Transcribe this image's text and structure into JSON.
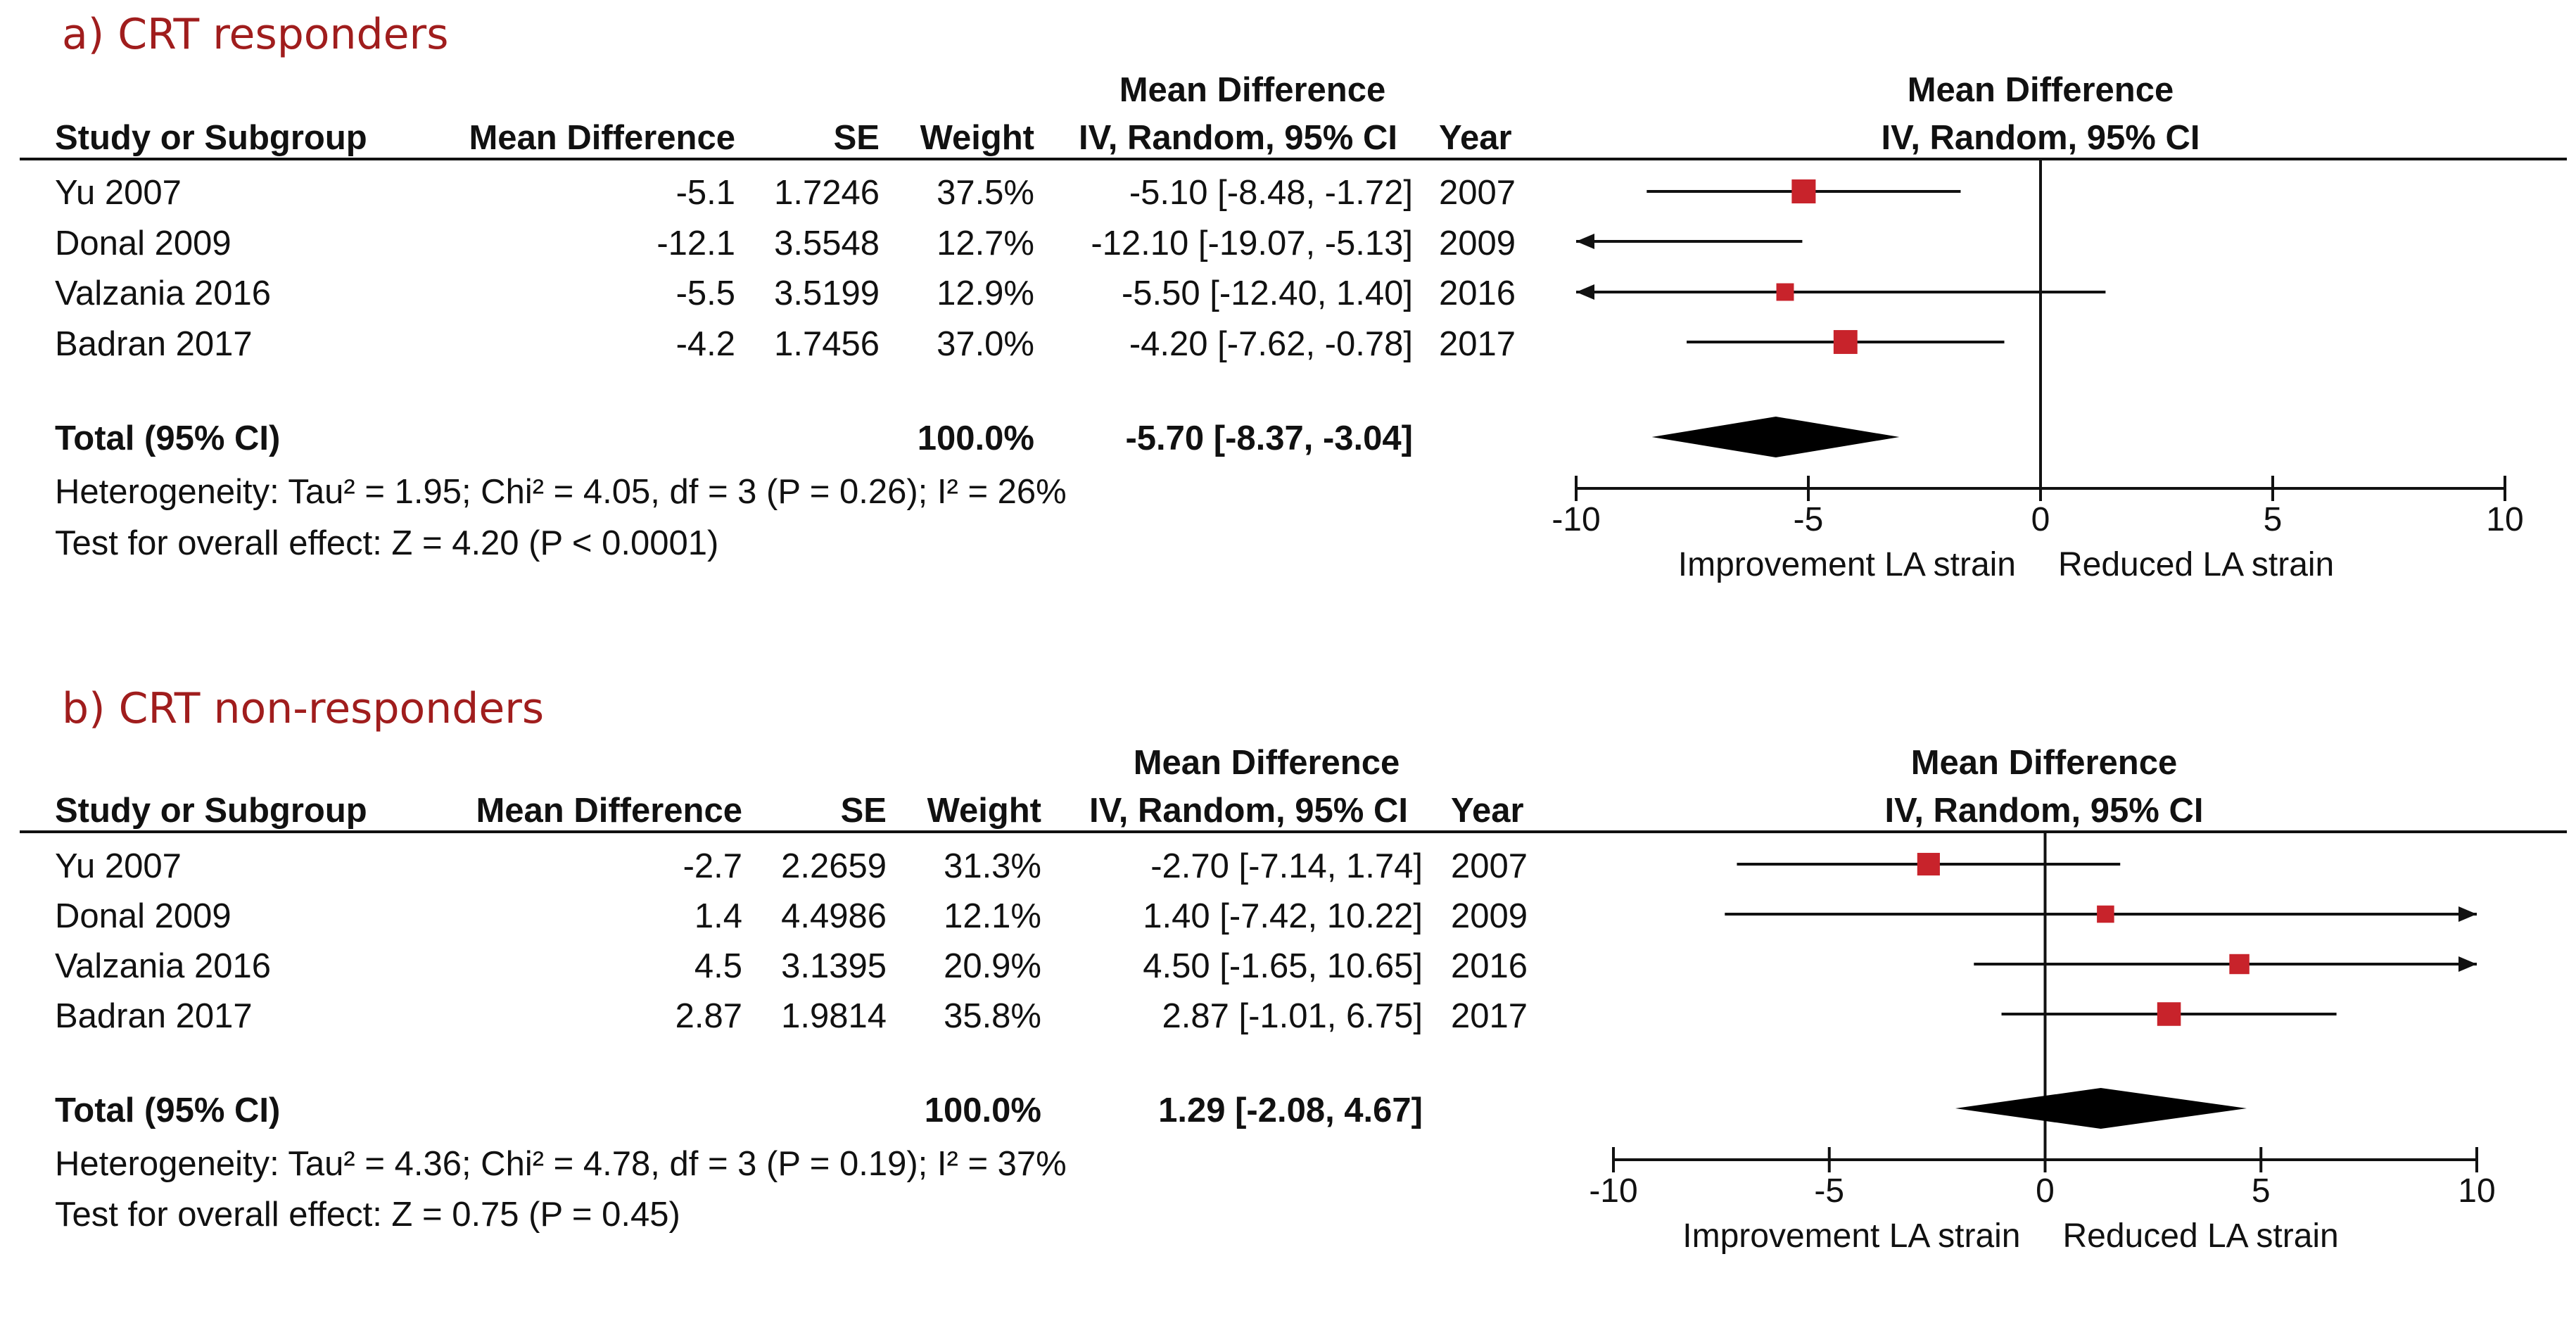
{
  "chart_data": [
    {
      "type": "forest",
      "title": "a) CRT responders",
      "column_headers": {
        "study": "Study or Subgroup",
        "mean_difference": "Mean Difference",
        "se": "SE",
        "weight": "Weight",
        "ci_top": "Mean Difference",
        "ci_bottom": "IV, Random, 95% CI",
        "year": "Year",
        "plot_top": "Mean Difference",
        "plot_bottom": "IV, Random, 95% CI"
      },
      "studies": [
        {
          "name": "Yu 2007",
          "md": "-5.1",
          "se": "1.7246",
          "weight": "37.5%",
          "ci_text": "-5.10 [-8.48, -1.72]",
          "year": "2007",
          "estimate": -5.1,
          "lower": -8.48,
          "upper": -1.72,
          "weight_value": 37.5
        },
        {
          "name": "Donal 2009",
          "md": "-12.1",
          "se": "3.5548",
          "weight": "12.7%",
          "ci_text": "-12.10 [-19.07, -5.13]",
          "year": "2009",
          "estimate": -12.1,
          "lower": -19.07,
          "upper": -5.13,
          "weight_value": 12.7
        },
        {
          "name": "Valzania 2016",
          "md": "-5.5",
          "se": "3.5199",
          "weight": "12.9%",
          "ci_text": "-5.50 [-12.40, 1.40]",
          "year": "2016",
          "estimate": -5.5,
          "lower": -12.4,
          "upper": 1.4,
          "weight_value": 12.9
        },
        {
          "name": "Badran 2017",
          "md": "-4.2",
          "se": "1.7456",
          "weight": "37.0%",
          "ci_text": "-4.20 [-7.62, -0.78]",
          "year": "2017",
          "estimate": -4.2,
          "lower": -7.62,
          "upper": -0.78,
          "weight_value": 37.0
        }
      ],
      "total": {
        "label": "Total (95% CI)",
        "weight": "100.0%",
        "ci_text": "-5.70 [-8.37, -3.04]",
        "estimate": -5.7,
        "lower": -8.37,
        "upper": -3.04
      },
      "heterogeneity": "Heterogeneity: Tau² = 1.95; Chi² = 4.05, df = 3 (P = 0.26); I² = 26%",
      "overall_effect": "Test for overall effect: Z = 4.20 (P < 0.0001)",
      "xlim": [
        -10,
        10
      ],
      "x_ticks": [
        -10,
        -5,
        0,
        5,
        10
      ],
      "x_tick_labels": [
        "-10",
        "-5",
        "0",
        "5",
        "10"
      ],
      "favours_left": "Improvement LA strain",
      "favours_right": "Reduced LA strain"
    },
    {
      "type": "forest",
      "title": "b) CRT non-responders",
      "column_headers": {
        "study": "Study or Subgroup",
        "mean_difference": "Mean Difference",
        "se": "SE",
        "weight": "Weight",
        "ci_top": "Mean Difference",
        "ci_bottom": "IV, Random, 95% CI",
        "year": "Year",
        "plot_top": "Mean Difference",
        "plot_bottom": "IV, Random, 95% CI"
      },
      "studies": [
        {
          "name": "Yu 2007",
          "md": "-2.7",
          "se": "2.2659",
          "weight": "31.3%",
          "ci_text": "-2.70 [-7.14, 1.74]",
          "year": "2007",
          "estimate": -2.7,
          "lower": -7.14,
          "upper": 1.74,
          "weight_value": 31.3
        },
        {
          "name": "Donal 2009",
          "md": "1.4",
          "se": "4.4986",
          "weight": "12.1%",
          "ci_text": "1.40 [-7.42, 10.22]",
          "year": "2009",
          "estimate": 1.4,
          "lower": -7.42,
          "upper": 10.22,
          "weight_value": 12.1
        },
        {
          "name": "Valzania 2016",
          "md": "4.5",
          "se": "3.1395",
          "weight": "20.9%",
          "ci_text": "4.50 [-1.65, 10.65]",
          "year": "2016",
          "estimate": 4.5,
          "lower": -1.65,
          "upper": 10.65,
          "weight_value": 20.9
        },
        {
          "name": "Badran 2017",
          "md": "2.87",
          "se": "1.9814",
          "weight": "35.8%",
          "ci_text": "2.87 [-1.01, 6.75]",
          "year": "2017",
          "estimate": 2.87,
          "lower": -1.01,
          "upper": 6.75,
          "weight_value": 35.8
        }
      ],
      "total": {
        "label": "Total (95% CI)",
        "weight": "100.0%",
        "ci_text": "1.29 [-2.08, 4.67]",
        "estimate": 1.29,
        "lower": -2.08,
        "upper": 4.67
      },
      "heterogeneity": "Heterogeneity: Tau² = 4.36; Chi² = 4.78, df = 3 (P = 0.19); I² = 37%",
      "overall_effect": "Test for overall effect: Z = 0.75 (P = 0.45)",
      "xlim": [
        -10,
        10
      ],
      "x_ticks": [
        -10,
        -5,
        0,
        5,
        10
      ],
      "x_tick_labels": [
        "-10",
        "-5",
        "0",
        "5",
        "10"
      ],
      "favours_left": "Improvement LA strain",
      "favours_right": "Reduced LA strain"
    }
  ],
  "colors": {
    "title": "#a01d1d",
    "marker": "#c8232b",
    "line": "#111111",
    "diamond": "#000000"
  }
}
